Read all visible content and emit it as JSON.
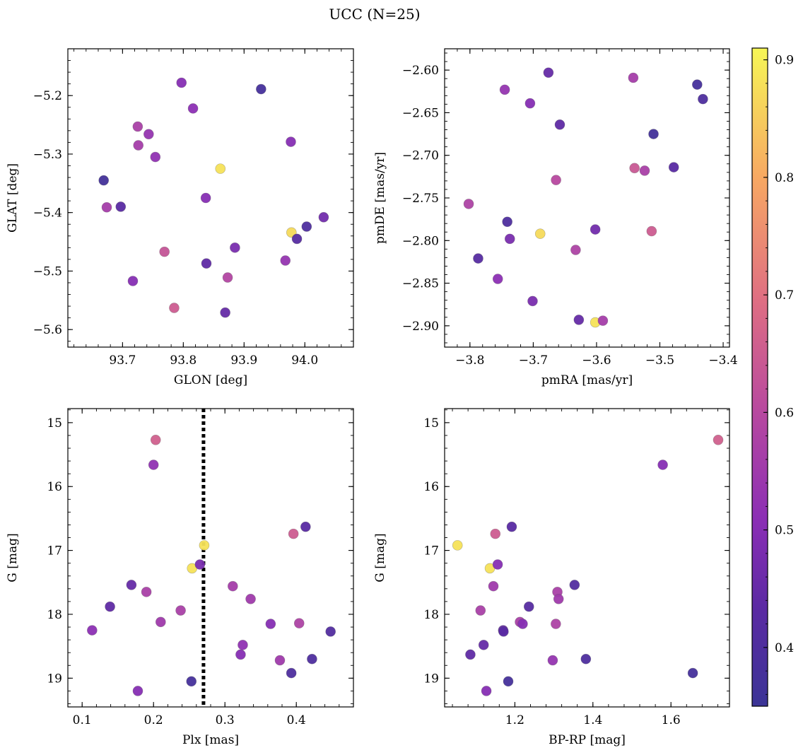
{
  "figure": {
    "title": "UCC (N=25)"
  },
  "chart_data": [
    {
      "id": "glon_glat",
      "type": "scatter",
      "xlabel": "GLON [deg]",
      "ylabel": "GLAT [deg]",
      "xlim": [
        93.61,
        94.08
      ],
      "ylim": [
        -5.63,
        -5.12
      ],
      "xticks": [
        93.7,
        93.8,
        93.9,
        94.0
      ],
      "xtick_labels": [
        "93.7",
        "93.8",
        "93.9",
        "94.0"
      ],
      "yticks": [
        -5.2,
        -5.3,
        -5.4,
        -5.5,
        -5.6
      ],
      "ytick_labels": [
        "−5.2",
        "−5.3",
        "−5.4",
        "−5.5",
        "−5.6"
      ],
      "x": [
        93.669,
        93.697,
        93.674,
        93.725,
        93.726,
        93.743,
        93.754,
        93.797,
        93.816,
        93.837,
        93.838,
        93.885,
        93.869,
        93.873,
        93.861,
        93.928,
        93.977,
        93.968,
        93.978,
        93.987,
        94.003,
        94.031,
        93.717,
        93.769,
        93.785
      ],
      "y": [
        -5.345,
        -5.39,
        -5.391,
        -5.253,
        -5.285,
        -5.266,
        -5.305,
        -5.178,
        -5.222,
        -5.375,
        -5.487,
        -5.46,
        -5.571,
        -5.511,
        -5.325,
        -5.189,
        -5.279,
        -5.482,
        -5.434,
        -5.445,
        -5.424,
        -5.408,
        -5.517,
        -5.467,
        -5.563
      ],
      "c": [
        0.37,
        0.43,
        0.56,
        0.57,
        0.56,
        0.53,
        0.52,
        0.5,
        0.51,
        0.5,
        0.44,
        0.48,
        0.45,
        0.59,
        0.88,
        0.38,
        0.5,
        0.53,
        0.87,
        0.42,
        0.4,
        0.47,
        0.5,
        0.63,
        0.65
      ]
    },
    {
      "id": "pm",
      "type": "scatter",
      "xlabel": "pmRA [mas/yr]",
      "ylabel": "pmDE [mas/yr]",
      "xlim": [
        -3.84,
        -3.39
      ],
      "ylim": [
        -2.925,
        -2.575
      ],
      "xticks": [
        -3.8,
        -3.7,
        -3.6,
        -3.5,
        -3.4
      ],
      "xtick_labels": [
        "−3.8",
        "−3.7",
        "−3.6",
        "−3.5",
        "−3.4"
      ],
      "yticks": [
        -2.6,
        -2.65,
        -2.7,
        -2.75,
        -2.8,
        -2.85,
        -2.9
      ],
      "ytick_labels": [
        "−2.60",
        "−2.65",
        "−2.70",
        "−2.75",
        "−2.80",
        "−2.85",
        "−2.90"
      ],
      "x": [
        -3.745,
        -3.676,
        -3.705,
        -3.658,
        -3.542,
        -3.441,
        -3.432,
        -3.51,
        -3.54,
        -3.524,
        -3.478,
        -3.664,
        -3.802,
        -3.741,
        -3.737,
        -3.689,
        -3.602,
        -3.513,
        -3.633,
        -3.787,
        -3.756,
        -3.701,
        -3.628,
        -3.602,
        -3.59
      ],
      "y": [
        -2.623,
        -2.603,
        -2.639,
        -2.664,
        -2.609,
        -2.617,
        -2.634,
        -2.675,
        -2.715,
        -2.718,
        -2.714,
        -2.729,
        -2.757,
        -2.778,
        -2.798,
        -2.792,
        -2.787,
        -2.789,
        -2.811,
        -2.821,
        -2.845,
        -2.871,
        -2.893,
        -2.896,
        -2.894
      ],
      "c": [
        0.53,
        0.45,
        0.5,
        0.44,
        0.56,
        0.38,
        0.4,
        0.37,
        0.64,
        0.57,
        0.43,
        0.6,
        0.58,
        0.4,
        0.48,
        0.87,
        0.47,
        0.65,
        0.58,
        0.42,
        0.51,
        0.48,
        0.45,
        0.88,
        0.56
      ]
    },
    {
      "id": "plx_g",
      "type": "scatter",
      "xlabel": "Plx [mas]",
      "ylabel": "G [mag]",
      "xlim": [
        0.08,
        0.48
      ],
      "ylim": [
        19.45,
        14.78
      ],
      "xticks": [
        0.1,
        0.2,
        0.3,
        0.4
      ],
      "xtick_labels": [
        "0.1",
        "0.2",
        "0.3",
        "0.4"
      ],
      "yticks": [
        15,
        16,
        17,
        18,
        19
      ],
      "ytick_labels": [
        "15",
        "16",
        "17",
        "18",
        "19"
      ],
      "vline": 0.27,
      "x": [
        0.203,
        0.2,
        0.271,
        0.254,
        0.265,
        0.169,
        0.19,
        0.139,
        0.21,
        0.238,
        0.114,
        0.178,
        0.253,
        0.311,
        0.336,
        0.364,
        0.325,
        0.322,
        0.377,
        0.393,
        0.413,
        0.396,
        0.404,
        0.422,
        0.448
      ],
      "y": [
        15.27,
        15.66,
        16.92,
        17.28,
        17.22,
        17.54,
        17.65,
        17.88,
        18.12,
        17.94,
        18.25,
        19.2,
        19.05,
        17.56,
        17.76,
        18.15,
        18.48,
        18.63,
        18.72,
        18.92,
        16.63,
        16.74,
        18.14,
        18.7,
        18.27
      ],
      "c": [
        0.66,
        0.52,
        0.88,
        0.88,
        0.48,
        0.45,
        0.57,
        0.44,
        0.55,
        0.57,
        0.51,
        0.5,
        0.38,
        0.56,
        0.55,
        0.5,
        0.52,
        0.5,
        0.55,
        0.4,
        0.43,
        0.65,
        0.58,
        0.4,
        0.41
      ]
    },
    {
      "id": "cmd",
      "type": "scatter",
      "xlabel": "BP-RP [mag]",
      "ylabel": "G [mag]",
      "xlim": [
        1.02,
        1.75
      ],
      "ylim": [
        19.45,
        14.78
      ],
      "xticks": [
        1.2,
        1.4,
        1.6
      ],
      "xtick_labels": [
        "1.2",
        "1.4",
        "1.6"
      ],
      "yticks": [
        15,
        16,
        17,
        18,
        19
      ],
      "ytick_labels": [
        "15",
        "16",
        "17",
        "18",
        "19"
      ],
      "x": [
        1.721,
        1.579,
        1.053,
        1.136,
        1.15,
        1.156,
        1.145,
        1.192,
        1.112,
        1.213,
        1.22,
        1.236,
        1.17,
        1.171,
        1.12,
        1.086,
        1.127,
        1.183,
        1.309,
        1.312,
        1.305,
        1.297,
        1.353,
        1.382,
        1.656
      ],
      "y": [
        15.27,
        15.66,
        16.92,
        17.28,
        16.74,
        17.22,
        17.56,
        16.63,
        17.94,
        18.12,
        18.15,
        17.88,
        18.25,
        18.27,
        18.48,
        18.63,
        19.2,
        19.05,
        17.65,
        17.76,
        18.15,
        18.72,
        17.54,
        18.7,
        18.92
      ],
      "c": [
        0.66,
        0.5,
        0.88,
        0.88,
        0.65,
        0.5,
        0.55,
        0.43,
        0.57,
        0.57,
        0.5,
        0.42,
        0.45,
        0.43,
        0.45,
        0.44,
        0.5,
        0.38,
        0.57,
        0.55,
        0.58,
        0.53,
        0.41,
        0.4,
        0.38
      ]
    }
  ],
  "colorbar": {
    "range": [
      0.35,
      0.91
    ],
    "ticks": [
      0.4,
      0.5,
      0.6,
      0.7,
      0.8,
      0.9
    ],
    "tick_labels": [
      "0.4",
      "0.5",
      "0.6",
      "0.7",
      "0.8",
      "0.9"
    ],
    "colormap": "plasma"
  }
}
